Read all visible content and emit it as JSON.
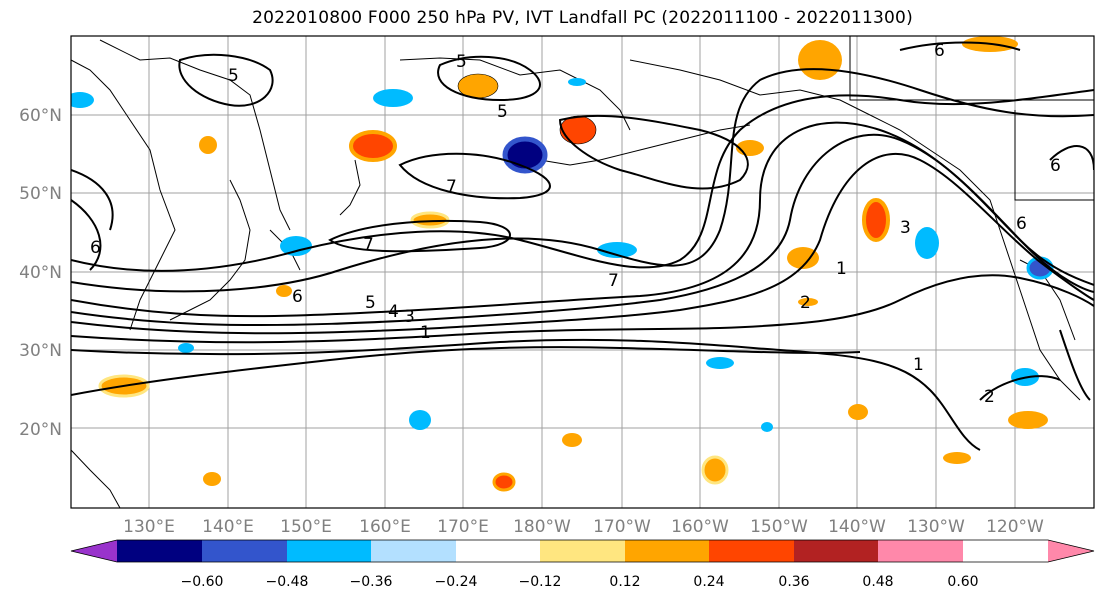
{
  "title": "2022010800 F000 250 hPa PV, IVT Landfall PC (2022011100 - 2022011300)",
  "latitude_labels": [
    "60°N",
    "50°N",
    "40°N",
    "30°N",
    "20°N"
  ],
  "longitude_labels": [
    "130°E",
    "140°E",
    "150°E",
    "160°E",
    "170°E",
    "180°W",
    "170°W",
    "160°W",
    "150°W",
    "140°W",
    "130°W",
    "120°W"
  ],
  "contour_labels": [
    "5",
    "5",
    "5",
    "6",
    "7",
    "7",
    "6",
    "5",
    "4",
    "3",
    "1",
    "7",
    "1",
    "2",
    "2",
    "1",
    "3",
    "6",
    "6",
    "6"
  ],
  "colorbar": {
    "tick_labels": [
      "−0.60",
      "−0.48",
      "−0.36",
      "−0.24",
      "−0.12",
      "0.12",
      "0.24",
      "0.36",
      "0.48",
      "0.60"
    ],
    "colors": [
      "#9933cc",
      "#000080",
      "#3355cc",
      "#00bbff",
      "#b3e0ff",
      "#ffffff",
      "#ffe680",
      "#ffa500",
      "#ff4500",
      "#b22222",
      "#ff88aa"
    ]
  },
  "chart_data": {
    "type": "heatmap",
    "title": "2022010800 F000 250 hPa PV, IVT Landfall PC (2022011100 - 2022011300)",
    "map_extent": {
      "lon_min": 120,
      "lon_max": -115,
      "lat_min": 10,
      "lat_max": 70
    },
    "contour_field": "250 hPa PV",
    "shaded_field": "IVT Landfall PC",
    "contour_levels": [
      1,
      2,
      3,
      4,
      5,
      6,
      7
    ],
    "shading_levels": [
      -0.6,
      -0.48,
      -0.36,
      -0.24,
      -0.12,
      0.12,
      0.24,
      0.36,
      0.48,
      0.6
    ],
    "grid": true
  }
}
